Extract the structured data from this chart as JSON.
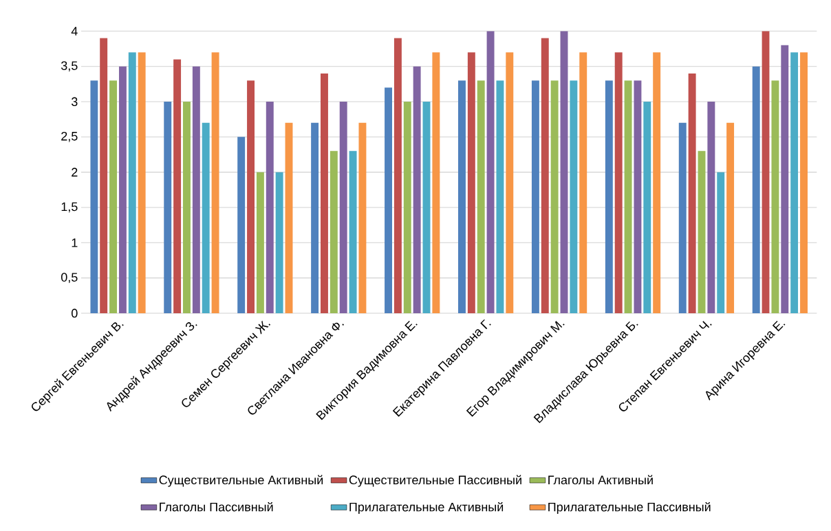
{
  "chart_data": {
    "type": "bar",
    "categories": [
      "Сергей Евгеньевич В.",
      "Андрей Андреевич З.",
      "Семен Сергеевич Ж.",
      "Светлана Ивановна Ф.",
      "Виктория Вадимовна Е.",
      "Екатерина Павловна Г.",
      "Егор Владимирович М.",
      "Владислава Юрьевна Б.",
      "Степан Евгеньевич Ч.",
      "Арина Игоревна Е."
    ],
    "series": [
      {
        "name": "Существительные Активный",
        "color": "#4f81bd",
        "values": [
          3.3,
          3.0,
          2.5,
          2.7,
          3.2,
          3.3,
          3.3,
          3.3,
          2.7,
          3.5
        ]
      },
      {
        "name": "Существительные Пассивный",
        "color": "#c0504d",
        "values": [
          3.9,
          3.6,
          3.3,
          3.4,
          3.9,
          3.7,
          3.9,
          3.7,
          3.4,
          4.0
        ]
      },
      {
        "name": "Глаголы Активный",
        "color": "#9bbb59",
        "values": [
          3.3,
          3.0,
          2.0,
          2.3,
          3.0,
          3.3,
          3.3,
          3.3,
          2.3,
          3.3
        ]
      },
      {
        "name": "Глаголы Пассивный",
        "color": "#8064a2",
        "values": [
          3.5,
          3.5,
          3.0,
          3.0,
          3.5,
          4.0,
          4.0,
          3.3,
          3.0,
          3.8
        ]
      },
      {
        "name": "Прилагательные Активный",
        "color": "#4bacc6",
        "values": [
          3.7,
          2.7,
          2.0,
          2.3,
          3.0,
          3.3,
          3.3,
          3.0,
          2.0,
          3.7
        ]
      },
      {
        "name": "Прилагательные Пассивный",
        "color": "#f79646",
        "values": [
          3.7,
          3.7,
          2.7,
          2.7,
          3.7,
          3.7,
          3.7,
          3.7,
          2.7,
          3.7
        ]
      }
    ],
    "ylim": [
      0,
      4
    ],
    "yticks": [
      0,
      {
        "value": 0.5,
        "label": "0,5"
      },
      1,
      {
        "value": 1.5,
        "label": "1,5"
      },
      2,
      {
        "value": 2.5,
        "label": "2,5"
      },
      3,
      {
        "value": 3.5,
        "label": "3,5"
      },
      4
    ],
    "grid": "y",
    "legend": "bottom"
  }
}
